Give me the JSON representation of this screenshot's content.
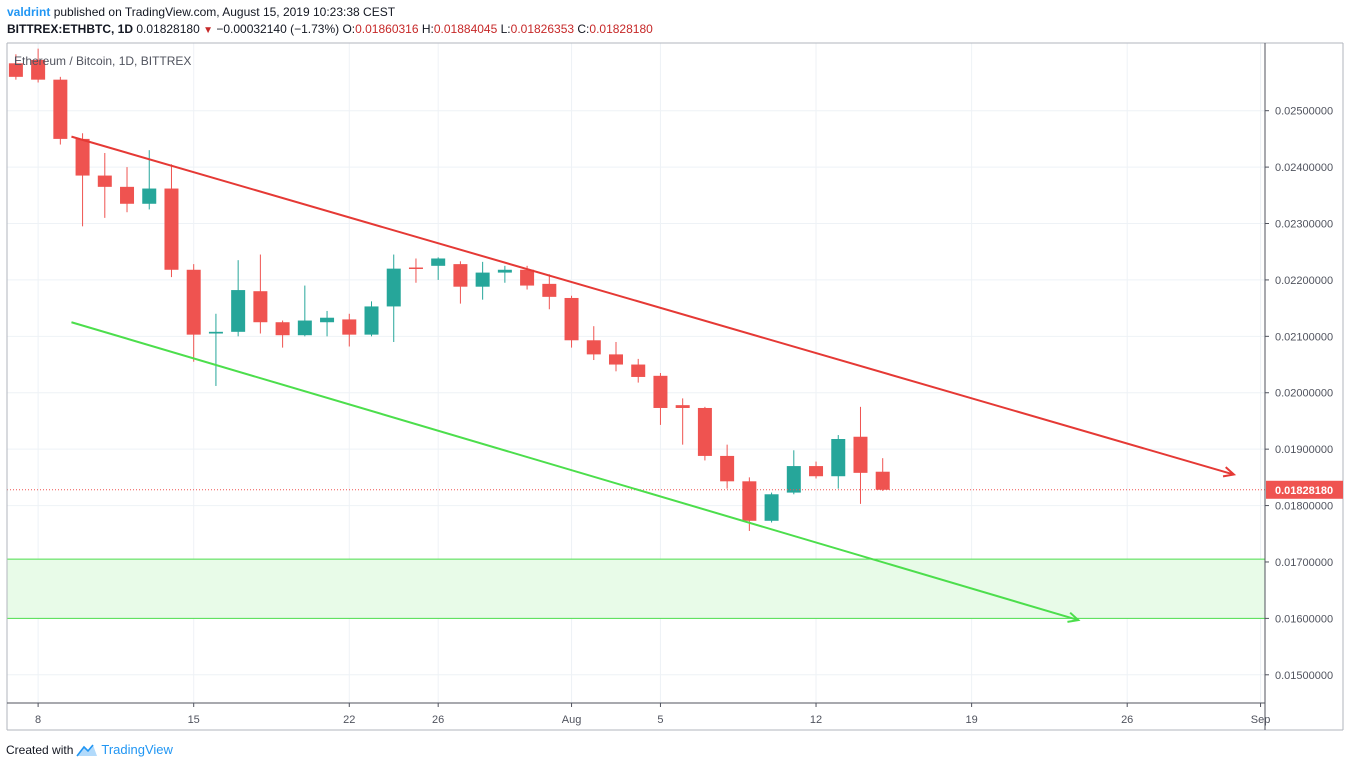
{
  "header": {
    "author": "valdrint",
    "published_text": "published on TradingView.com, August 15, 2019 10:23:38 CEST",
    "symbol": "BITTREX:ETHBTC, 1D",
    "close": "0.01828180",
    "change": "−0.00032140 (−1.73%)",
    "o_label": "O:",
    "o_value": "0.01860316",
    "h_label": "H:",
    "h_value": "0.01884045",
    "l_label": "L:",
    "l_value": "0.01826353",
    "c_label": "C:",
    "c_value": "0.01828180"
  },
  "footer": {
    "created_with": "Created with",
    "brand": "TradingView"
  },
  "colors": {
    "up": "#26a69a",
    "down": "#ef5350",
    "resistance": "#e53935",
    "support": "#4cde4c",
    "zone_fill": "#e8fbe8",
    "grid": "#eef2f6"
  },
  "chart_data": {
    "type": "candlestick",
    "title": "Ethereum / Bitcoin, 1D, BITTREX",
    "ylim": [
      0.0145,
      0.0262
    ],
    "y_ticks": [
      "0.01500000",
      "0.01600000",
      "0.01700000",
      "0.01800000",
      "0.01900000",
      "0.02000000",
      "0.02100000",
      "0.02200000",
      "0.02300000",
      "0.02400000",
      "0.02500000"
    ],
    "x_ticks": [
      {
        "label": "8",
        "day": 0
      },
      {
        "label": "15",
        "day": 7
      },
      {
        "label": "22",
        "day": 14
      },
      {
        "label": "26",
        "day": 18
      },
      {
        "label": "Aug",
        "day": 24
      },
      {
        "label": "5",
        "day": 28
      },
      {
        "label": "12",
        "day": 35
      },
      {
        "label": "19",
        "day": 42
      },
      {
        "label": "26",
        "day": 49
      },
      {
        "label": "Sep",
        "day": 55
      }
    ],
    "x_range_days": [
      -1.4,
      55.2
    ],
    "last_price_label": "0.01828180",
    "candles": [
      {
        "day": -1,
        "o": 0.02584,
        "h": 0.026,
        "l": 0.02555,
        "c": 0.0256
      },
      {
        "day": 0,
        "o": 0.0259,
        "h": 0.0261,
        "l": 0.0255,
        "c": 0.02555
      },
      {
        "day": 1,
        "o": 0.02555,
        "h": 0.0256,
        "l": 0.0244,
        "c": 0.0245
      },
      {
        "day": 2,
        "o": 0.0245,
        "h": 0.0246,
        "l": 0.02295,
        "c": 0.02385
      },
      {
        "day": 3,
        "o": 0.02385,
        "h": 0.02425,
        "l": 0.0231,
        "c": 0.02365
      },
      {
        "day": 4,
        "o": 0.02365,
        "h": 0.024,
        "l": 0.0232,
        "c": 0.02335
      },
      {
        "day": 5,
        "o": 0.02335,
        "h": 0.0243,
        "l": 0.02325,
        "c": 0.02362
      },
      {
        "day": 6,
        "o": 0.02362,
        "h": 0.02405,
        "l": 0.02205,
        "c": 0.02218
      },
      {
        "day": 7,
        "o": 0.02218,
        "h": 0.02228,
        "l": 0.02055,
        "c": 0.02103
      },
      {
        "day": 8,
        "o": 0.02105,
        "h": 0.0214,
        "l": 0.02012,
        "c": 0.02108
      },
      {
        "day": 9,
        "o": 0.02108,
        "h": 0.02235,
        "l": 0.021,
        "c": 0.02182
      },
      {
        "day": 10,
        "o": 0.0218,
        "h": 0.02245,
        "l": 0.02105,
        "c": 0.02125
      },
      {
        "day": 11,
        "o": 0.02125,
        "h": 0.02128,
        "l": 0.0208,
        "c": 0.02102
      },
      {
        "day": 12,
        "o": 0.02102,
        "h": 0.0219,
        "l": 0.021,
        "c": 0.02128
      },
      {
        "day": 13,
        "o": 0.02125,
        "h": 0.02145,
        "l": 0.021,
        "c": 0.02133
      },
      {
        "day": 14,
        "o": 0.0213,
        "h": 0.0214,
        "l": 0.02082,
        "c": 0.02103
      },
      {
        "day": 15,
        "o": 0.02103,
        "h": 0.02162,
        "l": 0.021,
        "c": 0.02153
      },
      {
        "day": 16,
        "o": 0.02153,
        "h": 0.02245,
        "l": 0.0209,
        "c": 0.0222
      },
      {
        "day": 17,
        "o": 0.02222,
        "h": 0.02238,
        "l": 0.02195,
        "c": 0.0222
      },
      {
        "day": 18,
        "o": 0.02225,
        "h": 0.0224,
        "l": 0.022,
        "c": 0.02238
      },
      {
        "day": 19,
        "o": 0.02228,
        "h": 0.02233,
        "l": 0.02158,
        "c": 0.02188
      },
      {
        "day": 20,
        "o": 0.02188,
        "h": 0.02232,
        "l": 0.02165,
        "c": 0.02213
      },
      {
        "day": 21,
        "o": 0.02213,
        "h": 0.02225,
        "l": 0.02195,
        "c": 0.02218
      },
      {
        "day": 22,
        "o": 0.02218,
        "h": 0.02225,
        "l": 0.02183,
        "c": 0.0219
      },
      {
        "day": 23,
        "o": 0.02193,
        "h": 0.0221,
        "l": 0.02148,
        "c": 0.0217
      },
      {
        "day": 24,
        "o": 0.02168,
        "h": 0.02172,
        "l": 0.0208,
        "c": 0.02093
      },
      {
        "day": 25,
        "o": 0.02093,
        "h": 0.02118,
        "l": 0.02058,
        "c": 0.02068
      },
      {
        "day": 26,
        "o": 0.02068,
        "h": 0.0209,
        "l": 0.02038,
        "c": 0.0205
      },
      {
        "day": 27,
        "o": 0.0205,
        "h": 0.0206,
        "l": 0.02018,
        "c": 0.02028
      },
      {
        "day": 28,
        "o": 0.0203,
        "h": 0.02035,
        "l": 0.01943,
        "c": 0.01973
      },
      {
        "day": 29,
        "o": 0.01978,
        "h": 0.0199,
        "l": 0.01908,
        "c": 0.01973
      },
      {
        "day": 30,
        "o": 0.01973,
        "h": 0.01975,
        "l": 0.0188,
        "c": 0.01888
      },
      {
        "day": 31,
        "o": 0.01888,
        "h": 0.01908,
        "l": 0.0183,
        "c": 0.01843
      },
      {
        "day": 32,
        "o": 0.01843,
        "h": 0.0185,
        "l": 0.01755,
        "c": 0.01773
      },
      {
        "day": 33,
        "o": 0.01773,
        "h": 0.01823,
        "l": 0.0177,
        "c": 0.0182
      },
      {
        "day": 34,
        "o": 0.01823,
        "h": 0.01898,
        "l": 0.0182,
        "c": 0.0187
      },
      {
        "day": 35,
        "o": 0.0187,
        "h": 0.01878,
        "l": 0.01848,
        "c": 0.01852
      },
      {
        "day": 36,
        "o": 0.01852,
        "h": 0.01925,
        "l": 0.0183,
        "c": 0.01918
      },
      {
        "day": 37,
        "o": 0.01922,
        "h": 0.01975,
        "l": 0.01803,
        "c": 0.01858
      },
      {
        "day": 38,
        "o": 0.0186,
        "h": 0.01884,
        "l": 0.01826,
        "c": 0.01828
      }
    ],
    "resistance_line": {
      "from": {
        "day": 1.5,
        "price": 0.02454
      },
      "to": {
        "day": 53.8,
        "price": 0.01855
      }
    },
    "support_line": {
      "from": {
        "day": 1.5,
        "price": 0.02125
      },
      "to": {
        "day": 46.8,
        "price": 0.01597
      }
    },
    "support_zone": {
      "low": 0.016,
      "high": 0.01705
    }
  }
}
